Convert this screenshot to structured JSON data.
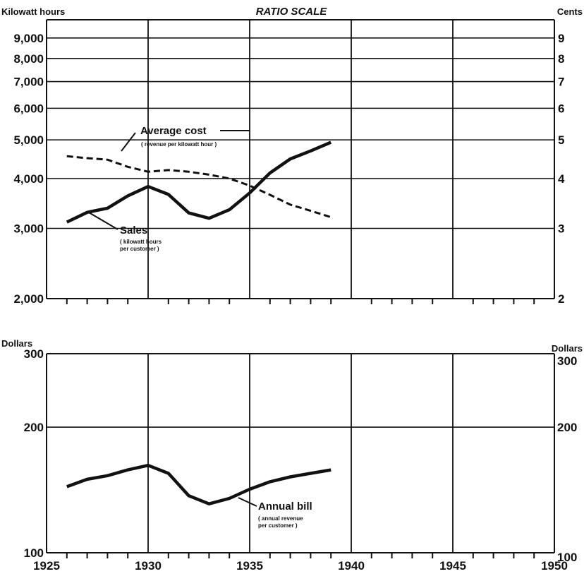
{
  "chart_data": [
    {
      "type": "line",
      "title": "RATIO SCALE",
      "scale": "log",
      "left_axis_label": "Kilowatt hours",
      "right_axis_label": "Cents",
      "left_ticks": [
        {
          "value": 2000,
          "label": "2,000"
        },
        {
          "value": 3000,
          "label": "3,000"
        },
        {
          "value": 4000,
          "label": "4,000"
        },
        {
          "value": 5000,
          "label": "5,000"
        },
        {
          "value": 6000,
          "label": "6,000"
        },
        {
          "value": 7000,
          "label": "7,000"
        },
        {
          "value": 8000,
          "label": "8,000"
        },
        {
          "value": 9000,
          "label": "9,000"
        }
      ],
      "right_ticks": [
        {
          "value": 2,
          "label": "2"
        },
        {
          "value": 3,
          "label": "3"
        },
        {
          "value": 4,
          "label": "4"
        },
        {
          "value": 5,
          "label": "5"
        },
        {
          "value": 6,
          "label": "6"
        },
        {
          "value": 7,
          "label": "7"
        },
        {
          "value": 8,
          "label": "8"
        },
        {
          "value": 9,
          "label": "9"
        }
      ],
      "ylim_left": [
        2000,
        10000
      ],
      "ylim_right": [
        2,
        10
      ],
      "xlim": [
        1925,
        1950
      ],
      "series": [
        {
          "name": "Sales",
          "sublabel_lines": [
            "( kilowatt hours",
            "per customer )"
          ],
          "axis": "left",
          "style": "solid",
          "x": [
            1926,
            1927,
            1928,
            1929,
            1930,
            1931,
            1932,
            1933,
            1934,
            1935,
            1936,
            1937,
            1938,
            1939
          ],
          "values": [
            3110,
            3290,
            3370,
            3620,
            3820,
            3650,
            3280,
            3180,
            3340,
            3680,
            4130,
            4480,
            4690,
            4930
          ]
        },
        {
          "name": "Average cost",
          "sublabel_lines": [
            "( revenue per kilowatt hour )"
          ],
          "axis": "right",
          "style": "dashed",
          "x": [
            1926,
            1927,
            1928,
            1929,
            1930,
            1931,
            1932,
            1933,
            1934,
            1935,
            1936,
            1937,
            1938,
            1939
          ],
          "values": [
            4.55,
            4.5,
            4.46,
            4.28,
            4.16,
            4.2,
            4.16,
            4.09,
            4.0,
            3.84,
            3.64,
            3.44,
            3.32,
            3.2
          ]
        }
      ]
    },
    {
      "type": "line",
      "scale": "log",
      "left_axis_label": "Dollars",
      "right_axis_label": "Dollars",
      "left_ticks": [
        {
          "value": 100,
          "label": "100"
        },
        {
          "value": 200,
          "label": "200"
        },
        {
          "value": 300,
          "label": "300"
        }
      ],
      "right_ticks": [
        {
          "value": 100,
          "label": "100"
        },
        {
          "value": 200,
          "label": "200"
        },
        {
          "value": 300,
          "label": "300"
        }
      ],
      "ylim": [
        100,
        300
      ],
      "xlim": [
        1925,
        1950
      ],
      "x_tick_labels": [
        "1925",
        "1930",
        "1935",
        "1940",
        "1945",
        "1950"
      ],
      "series": [
        {
          "name": "Annual bill",
          "sublabel_lines": [
            "( annual revenue",
            "per customer )"
          ],
          "style": "solid",
          "x": [
            1926,
            1927,
            1928,
            1929,
            1930,
            1931,
            1932,
            1933,
            1934,
            1935,
            1936,
            1937,
            1938,
            1939
          ],
          "values": [
            144,
            150,
            153,
            158,
            162,
            155,
            137,
            131,
            135,
            142,
            148,
            152,
            155,
            158
          ]
        }
      ]
    }
  ]
}
